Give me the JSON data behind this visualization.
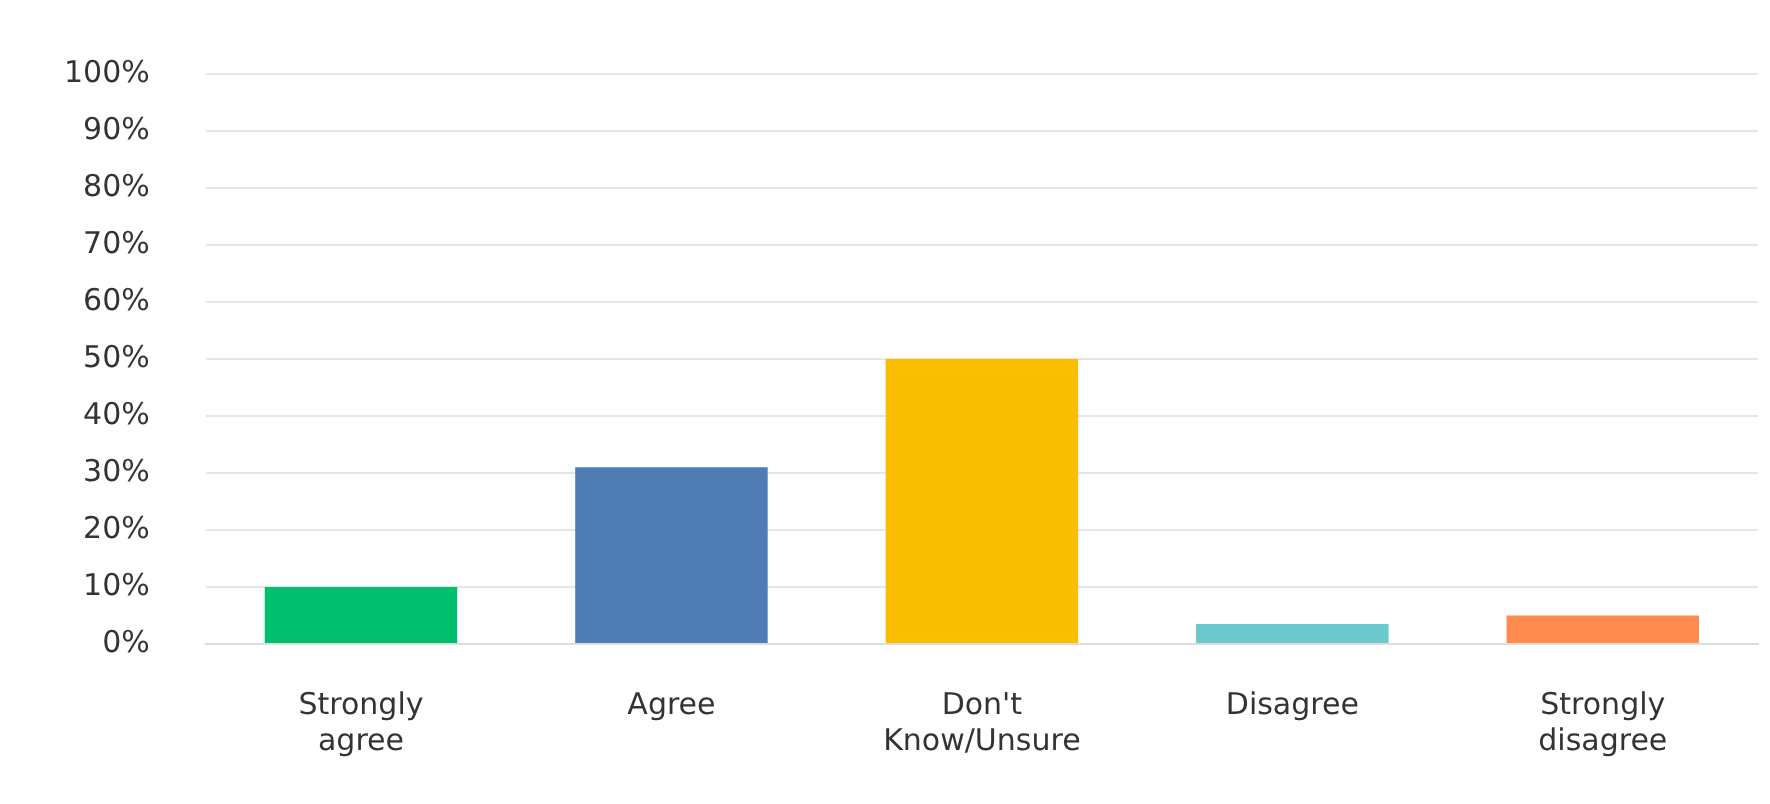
{
  "chart_data": {
    "type": "bar",
    "categories": [
      "Strongly agree",
      "Agree",
      "Don't Know/Unsure",
      "Disagree",
      "Strongly disagree"
    ],
    "values": [
      10,
      31,
      50,
      3.5,
      5
    ],
    "colors": [
      "#00bf6f",
      "#507cb6",
      "#f9be00",
      "#6bc8cd",
      "#ff8b4f"
    ],
    "ylim": [
      0,
      100
    ],
    "yticks": [
      {
        "value": 0,
        "label": "0%"
      },
      {
        "value": 10,
        "label": "10%"
      },
      {
        "value": 20,
        "label": "20%"
      },
      {
        "value": 30,
        "label": "30%"
      },
      {
        "value": 40,
        "label": "40%"
      },
      {
        "value": 50,
        "label": "50%"
      },
      {
        "value": 60,
        "label": "60%"
      },
      {
        "value": 70,
        "label": "70%"
      },
      {
        "value": 80,
        "label": "80%"
      },
      {
        "value": 90,
        "label": "90%"
      },
      {
        "value": 100,
        "label": "100%"
      }
    ],
    "grid": "y",
    "legend": false
  }
}
